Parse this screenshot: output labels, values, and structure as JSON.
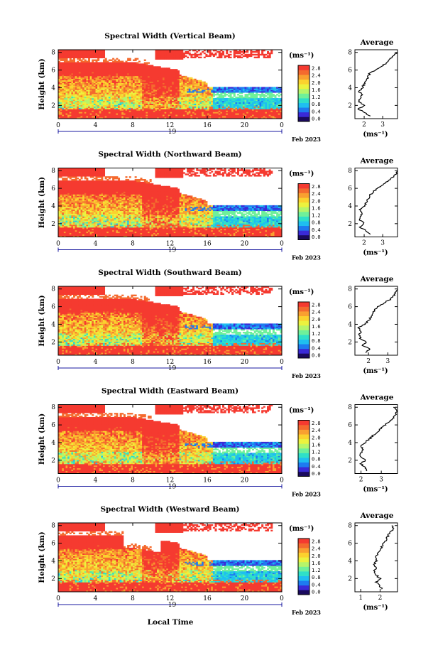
{
  "chart_data": {
    "type": "heatmap",
    "x_axis_label": "Local Time",
    "date_label": "Feb 2023",
    "day_label": "19",
    "x_ticks": [
      "0",
      "4",
      "8",
      "12",
      "16",
      "20",
      "0"
    ],
    "y_axis_label": "Height (km)",
    "y_ticks": [
      "2",
      "4",
      "6",
      "8"
    ],
    "y_range": [
      0.5,
      8.3
    ],
    "x_range": [
      0,
      24
    ],
    "colorbar": {
      "unit_label": "(ms⁻¹)",
      "tick_labels": [
        "2.8",
        "2.4",
        "2.0",
        "1.6",
        "1.2",
        "0.8",
        "0.4",
        "0.0"
      ],
      "range": [
        0.0,
        3.0
      ],
      "colors": [
        "#1a0a5e",
        "#3a2ad8",
        "#1e7bf0",
        "#1fbff0",
        "#2fe0c8",
        "#6ff09a",
        "#b6f56a",
        "#ecf23e",
        "#fbd22e",
        "#f9a030",
        "#f46a2e",
        "#f53a30"
      ]
    },
    "panels": [
      {
        "title": "Spectral Width (Vertical Beam)",
        "profile_title": "Average",
        "profile_xlabel": "(ms⁻¹)",
        "profile_xticks": [
          "2",
          "3"
        ],
        "profile_xrange": [
          1.5,
          3.8
        ],
        "profile_yticks": [
          "2",
          "4",
          "6",
          "8"
        ],
        "profile_heights": [
          0.8,
          1.2,
          1.6,
          2.0,
          2.4,
          2.8,
          3.2,
          3.6,
          4.0,
          4.4,
          4.8,
          5.2,
          5.6,
          6.0,
          6.4,
          6.8,
          7.2,
          7.6,
          8.0
        ],
        "profile_values": [
          2.3,
          2.0,
          1.7,
          2.0,
          1.7,
          1.8,
          1.9,
          1.7,
          1.9,
          2.0,
          2.1,
          2.2,
          2.3,
          2.6,
          2.9,
          3.2,
          3.4,
          3.6,
          3.8
        ]
      },
      {
        "title": "Spectral Width (Northward Beam)",
        "profile_title": "Average",
        "profile_xlabel": "(ms⁻¹)",
        "profile_xticks": [
          "2",
          "3"
        ],
        "profile_xrange": [
          1.5,
          3.8
        ],
        "profile_yticks": [
          "2",
          "4",
          "6",
          "8"
        ],
        "profile_heights": [
          0.8,
          1.2,
          1.6,
          2.0,
          2.4,
          2.8,
          3.2,
          3.6,
          4.0,
          4.4,
          4.8,
          5.2,
          5.6,
          6.0,
          6.4,
          6.8,
          7.2,
          7.6,
          8.0
        ],
        "profile_values": [
          2.3,
          2.1,
          1.8,
          2.0,
          1.8,
          1.8,
          1.9,
          1.8,
          2.0,
          2.1,
          2.2,
          2.3,
          2.5,
          2.7,
          3.0,
          3.3,
          3.5,
          3.7,
          3.8
        ]
      },
      {
        "title": "Spectral Width (Southward Beam)",
        "profile_title": "Average",
        "profile_xlabel": "(ms⁻¹)",
        "profile_xticks": [
          "2",
          "3"
        ],
        "profile_xrange": [
          1.3,
          3.5
        ],
        "profile_yticks": [
          "2",
          "4",
          "6",
          "8"
        ],
        "profile_heights": [
          0.8,
          1.2,
          1.6,
          2.0,
          2.4,
          2.8,
          3.2,
          3.6,
          4.0,
          4.4,
          4.8,
          5.2,
          5.6,
          6.0,
          6.4,
          6.8,
          7.2,
          7.6,
          8.0
        ],
        "profile_values": [
          1.8,
          2.1,
          1.7,
          1.9,
          1.6,
          1.5,
          1.6,
          1.5,
          1.8,
          2.0,
          2.1,
          2.2,
          2.3,
          2.5,
          2.8,
          3.1,
          3.3,
          3.4,
          3.5
        ]
      },
      {
        "title": "Spectral Width (Eastward Beam)",
        "profile_title": "Average",
        "profile_xlabel": "(ms⁻¹)",
        "profile_xticks": [
          "2",
          "3"
        ],
        "profile_xrange": [
          1.7,
          3.8
        ],
        "profile_yticks": [
          "2",
          "4",
          "6",
          "8"
        ],
        "profile_heights": [
          0.8,
          1.2,
          1.6,
          2.0,
          2.4,
          2.8,
          3.2,
          3.6,
          4.0,
          4.4,
          4.8,
          5.2,
          5.6,
          6.0,
          6.4,
          6.8,
          7.2,
          7.6,
          8.0
        ],
        "profile_values": [
          2.3,
          2.2,
          2.0,
          2.2,
          2.0,
          2.0,
          2.1,
          2.0,
          2.2,
          2.4,
          2.6,
          2.8,
          3.0,
          3.2,
          3.4,
          3.6,
          3.7,
          3.8,
          3.6
        ]
      },
      {
        "title": "Spectral Width (Westward Beam)",
        "profile_title": "Average",
        "profile_xlabel": "(ms⁻¹)",
        "profile_xticks": [
          "1",
          "2"
        ],
        "profile_xrange": [
          0.7,
          2.9
        ],
        "profile_yticks": [
          "2",
          "4",
          "6",
          "8"
        ],
        "profile_heights": [
          0.8,
          1.2,
          1.6,
          2.0,
          2.4,
          2.8,
          3.2,
          3.6,
          4.0,
          4.4,
          4.8,
          5.2,
          5.6,
          6.0,
          6.4,
          6.8,
          7.2,
          7.6,
          8.0
        ],
        "profile_values": [
          2.1,
          2.0,
          1.8,
          2.0,
          1.8,
          1.7,
          1.8,
          1.7,
          1.8,
          1.8,
          1.9,
          2.0,
          2.1,
          2.2,
          2.3,
          2.4,
          2.5,
          2.7,
          2.6
        ]
      }
    ]
  }
}
